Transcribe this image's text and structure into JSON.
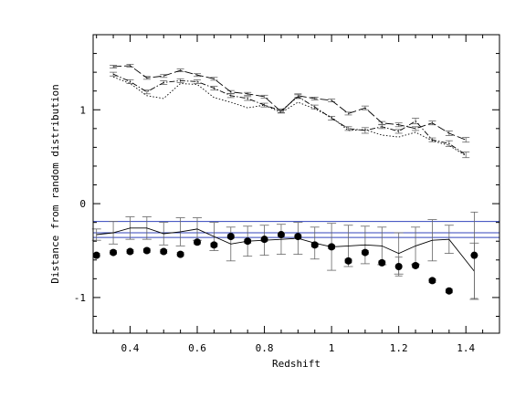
{
  "chart_data": {
    "type": "line",
    "xlabel": "Redshift",
    "ylabel": "Distance from random distribution",
    "xlim": [
      0.29,
      1.5
    ],
    "ylim": [
      -1.38,
      1.8
    ],
    "x_ticks": [
      "0.4",
      "0.6",
      "0.8",
      "1",
      "1.2",
      "1.4"
    ],
    "x_tick_values": [
      0.4,
      0.6,
      0.8,
      1.0,
      1.2,
      1.4
    ],
    "y_ticks": [
      "-1",
      "0",
      "1"
    ],
    "y_tick_values": [
      -1,
      0,
      1
    ],
    "grid": false,
    "series": [
      {
        "style": "long-dash line with error bars",
        "x": [
          0.35,
          0.4,
          0.45,
          0.5,
          0.55,
          0.6,
          0.65,
          0.7,
          0.75,
          0.8,
          0.85,
          0.9,
          0.95,
          1.0,
          1.05,
          1.1,
          1.15,
          1.2,
          1.25,
          1.3,
          1.35,
          1.4
        ],
        "y": [
          1.46,
          1.47,
          1.34,
          1.36,
          1.42,
          1.37,
          1.33,
          1.19,
          1.17,
          1.14,
          0.98,
          1.15,
          1.12,
          1.1,
          0.96,
          1.02,
          0.86,
          0.84,
          0.8,
          0.86,
          0.75,
          0.68
        ],
        "err": [
          0.015,
          0.015,
          0.015,
          0.015,
          0.015,
          0.015,
          0.015,
          0.015,
          0.015,
          0.015,
          0.015,
          0.02,
          0.015,
          0.015,
          0.015,
          0.02,
          0.015,
          0.02,
          0.02,
          0.02,
          0.025,
          0.025
        ]
      },
      {
        "style": "dash-dot line with error bars",
        "x": [
          0.35,
          0.4,
          0.45,
          0.5,
          0.55,
          0.6,
          0.65,
          0.7,
          0.75,
          0.8,
          0.85,
          0.9,
          0.95,
          1.0,
          1.05,
          1.1,
          1.15,
          1.2,
          1.25,
          1.3,
          1.35,
          1.4
        ],
        "y": [
          1.38,
          1.3,
          1.19,
          1.29,
          1.31,
          1.3,
          1.23,
          1.15,
          1.12,
          1.05,
          0.99,
          1.14,
          1.03,
          0.91,
          0.8,
          0.78,
          0.82,
          0.77,
          0.88,
          0.68,
          0.64,
          0.52
        ],
        "err": [
          0.02,
          0.02,
          0.02,
          0.02,
          0.02,
          0.02,
          0.02,
          0.02,
          0.02,
          0.02,
          0.02,
          0.02,
          0.02,
          0.02,
          0.02,
          0.03,
          0.02,
          0.02,
          0.03,
          0.02,
          0.03,
          0.03
        ]
      },
      {
        "style": "dotted line",
        "x": [
          0.35,
          0.4,
          0.45,
          0.5,
          0.55,
          0.6,
          0.65,
          0.7,
          0.75,
          0.8,
          0.85,
          0.9,
          0.95,
          1.0,
          1.05,
          1.1,
          1.15,
          1.2,
          1.25,
          1.3,
          1.35,
          1.4
        ],
        "y": [
          1.35,
          1.28,
          1.15,
          1.12,
          1.28,
          1.27,
          1.13,
          1.08,
          1.02,
          1.05,
          0.97,
          1.08,
          1.01,
          0.92,
          0.78,
          0.79,
          0.73,
          0.71,
          0.76,
          0.67,
          0.62,
          0.51
        ]
      },
      {
        "style": "solid line with error bars",
        "x": [
          0.3,
          0.35,
          0.4,
          0.45,
          0.5,
          0.55,
          0.6,
          0.65,
          0.7,
          0.75,
          0.8,
          0.85,
          0.9,
          0.95,
          1.0,
          1.05,
          1.1,
          1.15,
          1.2,
          1.25,
          1.3,
          1.35,
          1.425
        ],
        "y": [
          -0.33,
          -0.31,
          -0.26,
          -0.26,
          -0.32,
          -0.3,
          -0.27,
          -0.35,
          -0.43,
          -0.4,
          -0.39,
          -0.38,
          -0.37,
          -0.42,
          -0.46,
          -0.45,
          -0.44,
          -0.45,
          -0.53,
          -0.45,
          -0.39,
          -0.38,
          -0.72
        ],
        "err": [
          0.06,
          0.12,
          0.12,
          0.12,
          0.12,
          0.15,
          0.12,
          0.15,
          0.18,
          0.16,
          0.16,
          0.16,
          0.17,
          0.17,
          0.25,
          0.22,
          0.2,
          0.2,
          0.22,
          0.2,
          0.22,
          0.15,
          0.3
        ]
      },
      {
        "style": "filled circles with error bars",
        "x": [
          0.3,
          0.35,
          0.4,
          0.45,
          0.5,
          0.55,
          0.6,
          0.65,
          0.7,
          0.75,
          0.8,
          0.85,
          0.9,
          0.95,
          1.0,
          1.05,
          1.1,
          1.15,
          1.2,
          1.25,
          1.3,
          1.35,
          1.425
        ],
        "y": [
          -0.55,
          -0.52,
          -0.51,
          -0.5,
          -0.51,
          -0.54,
          -0.41,
          -0.44,
          -0.35,
          -0.4,
          -0.38,
          -0.33,
          -0.35,
          -0.44,
          -0.46,
          -0.61,
          -0.52,
          -0.63,
          -0.67,
          -0.66,
          -0.82,
          -0.93,
          -0.55
        ],
        "err": [
          0.02,
          0.02,
          0.02,
          0.02,
          0.02,
          0.02,
          0.02,
          0.02,
          0.02,
          0.02,
          0.02,
          0.02,
          0.02,
          0.02,
          0.02,
          0.02,
          0.02,
          0.02,
          0.1,
          0.02,
          0.02,
          0.02,
          0.46
        ]
      }
    ],
    "reference_lines": {
      "color": "#3344bb",
      "y": [
        -0.19,
        -0.31,
        -0.36
      ]
    },
    "colors": {
      "axes": "#000000",
      "data": "#000000",
      "error_bars": "#666666",
      "reference": "#3344bb"
    }
  }
}
